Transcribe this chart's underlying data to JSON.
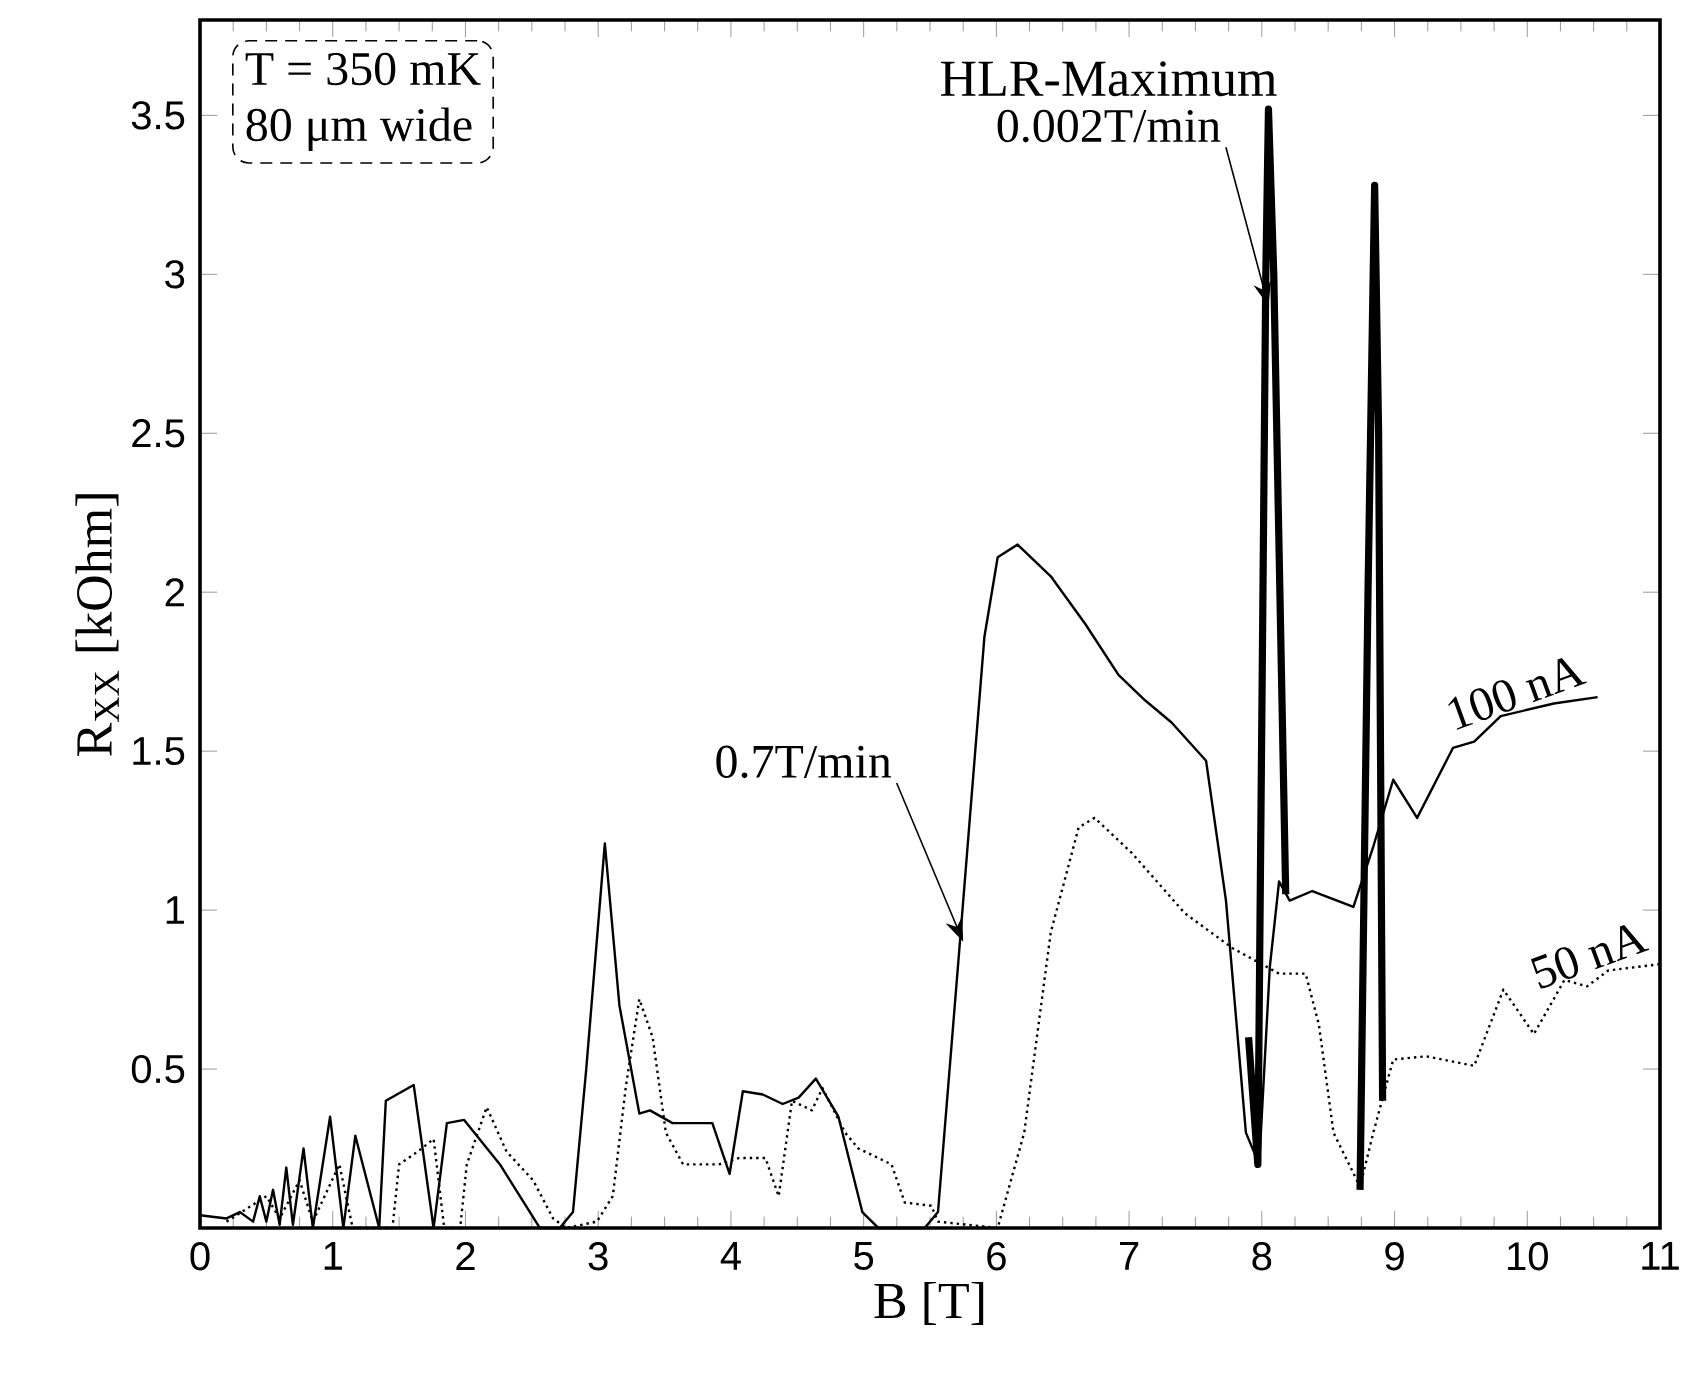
{
  "chart_data": {
    "type": "line",
    "xlabel": "B [T]",
    "ylabel": "R$_{XX}$  [kOhm]",
    "xlim": [
      0,
      11
    ],
    "ylim": [
      0,
      3.8
    ],
    "xticks": [
      0,
      1,
      2,
      3,
      4,
      5,
      6,
      7,
      8,
      9,
      10,
      11
    ],
    "yticks": [
      0.5,
      1,
      1.5,
      2,
      2.5,
      3,
      3.5
    ],
    "grid": false,
    "legend": false,
    "annotations": [
      "T = 350 mK",
      "80 μm wide",
      "HLR-Maximum",
      {
        "text": "0.002T/min",
        "x": 8.05,
        "y": 2.9
      },
      {
        "text": "0.7T/min",
        "x": 5.75,
        "y": 0.9
      }
    ],
    "series": [
      {
        "name": "100 nA",
        "color": "#000000",
        "line_style": "solid",
        "x": [
          0,
          0.2,
          0.3,
          0.4,
          0.45,
          0.5,
          0.55,
          0.6,
          0.65,
          0.7,
          0.78,
          0.85,
          0.98,
          1.08,
          1.17,
          1.35,
          1.4,
          1.61,
          1.76,
          1.86,
          1.99,
          2.26,
          2.56,
          2.71,
          2.81,
          2.91,
          3.05,
          3.16,
          3.31,
          3.39,
          3.56,
          3.86,
          3.99,
          4.09,
          4.24,
          4.39,
          4.51,
          4.64,
          4.81,
          4.99,
          5.11,
          5.46,
          5.56,
          5.71,
          5.91,
          6.01,
          6.16,
          6.41,
          6.67,
          6.92,
          7.12,
          7.32,
          7.58,
          7.73,
          7.88,
          7.98,
          8.06,
          8.13,
          8.21,
          8.38,
          8.69,
          8.84,
          8.99,
          9.17,
          9.44,
          9.6,
          9.8,
          10.2,
          10.53
        ],
        "values": [
          0.04,
          0.03,
          0.05,
          0.02,
          0.1,
          0.02,
          0.12,
          0.01,
          0.19,
          0.01,
          0.25,
          0,
          0.35,
          0,
          0.29,
          0,
          0.4,
          0.45,
          0,
          0.33,
          0.34,
          0.2,
          0,
          0,
          0.05,
          0.5,
          1.21,
          0.7,
          0.36,
          0.37,
          0.33,
          0.33,
          0.17,
          0.43,
          0.42,
          0.39,
          0.41,
          0.47,
          0.35,
          0.05,
          0,
          0,
          0.05,
          0.82,
          1.86,
          2.11,
          2.15,
          2.05,
          1.9,
          1.74,
          1.66,
          1.59,
          1.47,
          1.03,
          0.3,
          0.2,
          0.82,
          1.09,
          1.03,
          1.06,
          1.01,
          1.2,
          1.41,
          1.29,
          1.51,
          1.53,
          1.61,
          1.65,
          1.67
        ]
      },
      {
        "name": "50 nA",
        "color": "#000000",
        "line_style": "dotted",
        "x": [
          0.2,
          0.5,
          0.6,
          0.75,
          0.85,
          1.05,
          1.15,
          1.45,
          1.5,
          1.64,
          1.76,
          1.84,
          1.96,
          2.01,
          2.16,
          2.31,
          2.51,
          2.66,
          2.76,
          2.99,
          3.11,
          3.21,
          3.31,
          3.41,
          3.51,
          3.64,
          3.91,
          4.06,
          4.26,
          4.36,
          4.46,
          4.61,
          4.69,
          4.86,
          4.96,
          5.21,
          5.31,
          5.51,
          5.56,
          6.01,
          6.21,
          6.41,
          6.62,
          6.74,
          7.02,
          7.42,
          7.78,
          8.13,
          8.33,
          8.43,
          8.54,
          8.74,
          8.84,
          8.99,
          9.24,
          9.6,
          9.82,
          10.05,
          10.28,
          10.45,
          10.61,
          11
        ],
        "values": [
          0.02,
          0.1,
          0.03,
          0.15,
          0.02,
          0.2,
          0,
          0,
          0.2,
          0.24,
          0.28,
          0,
          0,
          0.2,
          0.38,
          0.24,
          0.15,
          0.03,
          0,
          0.02,
          0.1,
          0.45,
          0.72,
          0.6,
          0.3,
          0.2,
          0.2,
          0.22,
          0.22,
          0.1,
          0.4,
          0.37,
          0.44,
          0.3,
          0.25,
          0.2,
          0.08,
          0.07,
          0.02,
          0,
          0.3,
          0.93,
          1.26,
          1.29,
          1.18,
          0.99,
          0.88,
          0.8,
          0.8,
          0.64,
          0.3,
          0.13,
          0.3,
          0.53,
          0.54,
          0.51,
          0.75,
          0.61,
          0.78,
          0.76,
          0.81,
          0.83
        ]
      },
      {
        "color": "#000000",
        "line_style": "solid",
        "x": [
          7.9,
          7.97,
          8.03,
          8.05,
          8.09,
          8.18,
          8.7,
          8.74,
          8.8,
          8.85,
          8.88,
          8.91
        ],
        "values": [
          0.6,
          0.2,
          3.0,
          3.52,
          3.0,
          1.05,
          null,
          0.12,
          2.0,
          3.28,
          2.5,
          0.4
        ]
      }
    ]
  }
}
